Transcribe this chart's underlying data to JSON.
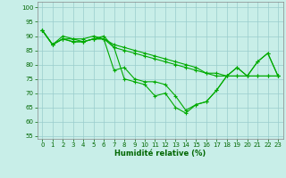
{
  "xlabel": "Humidité relative (%)",
  "background_color": "#c8eee8",
  "grid_color": "#99cccc",
  "line_color": "#00aa00",
  "xlim": [
    -0.5,
    23.5
  ],
  "ylim": [
    54,
    102
  ],
  "yticks": [
    55,
    60,
    65,
    70,
    75,
    80,
    85,
    90,
    95,
    100
  ],
  "xticks": [
    0,
    1,
    2,
    3,
    4,
    5,
    6,
    7,
    8,
    9,
    10,
    11,
    12,
    13,
    14,
    15,
    16,
    17,
    18,
    19,
    20,
    21,
    22,
    23
  ],
  "series": [
    [
      92,
      87,
      90,
      89,
      88,
      89,
      90,
      86,
      75,
      74,
      73,
      69,
      70,
      65,
      63,
      66,
      67,
      71,
      76,
      79,
      76,
      81,
      84,
      76
    ],
    [
      92,
      87,
      89,
      88,
      88,
      89,
      89,
      78,
      79,
      75,
      74,
      74,
      73,
      69,
      64,
      66,
      67,
      71,
      76,
      79,
      76,
      81,
      84,
      76
    ],
    [
      92,
      87,
      89,
      89,
      89,
      90,
      89,
      87,
      86,
      85,
      84,
      83,
      82,
      81,
      80,
      79,
      77,
      77,
      76,
      76,
      76,
      76,
      76,
      76
    ],
    [
      92,
      87,
      89,
      88,
      88,
      89,
      89,
      86,
      85,
      84,
      83,
      82,
      81,
      80,
      79,
      78,
      77,
      76,
      76,
      76,
      76,
      76,
      76,
      76
    ]
  ]
}
